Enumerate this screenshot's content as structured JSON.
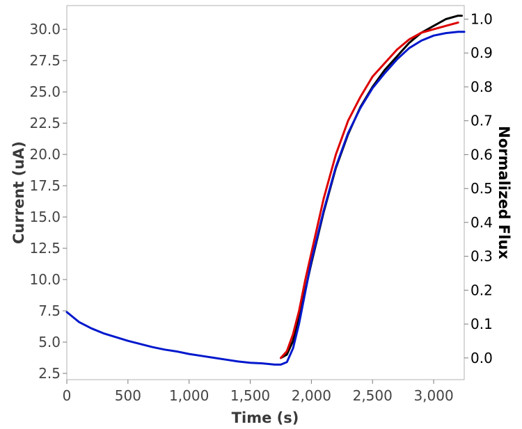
{
  "chart_data": {
    "type": "line",
    "title": "",
    "xlabel": "Time (s)",
    "ylabel": "Current (uA)",
    "y2label": "Normalized Flux",
    "xlim": [
      0,
      3250
    ],
    "ylim": [
      2.0,
      31.9
    ],
    "y2lim": [
      -0.064,
      1.04
    ],
    "x_ticks": [
      0,
      500,
      1000,
      1500,
      2000,
      2500,
      3000
    ],
    "x_tick_labels": [
      "0",
      "500",
      "1,000",
      "1,500",
      "2,000",
      "2,500",
      "3,000"
    ],
    "y_ticks": [
      2.5,
      5.0,
      7.5,
      10.0,
      12.5,
      15.0,
      17.5,
      20.0,
      22.5,
      25.0,
      27.5,
      30.0
    ],
    "y_tick_labels": [
      "2.5",
      "5.0",
      "7.5",
      "10.0",
      "12.5",
      "15.0",
      "17.5",
      "20.0",
      "22.5",
      "25.0",
      "27.5",
      "30.0"
    ],
    "y2_ticks": [
      0.0,
      0.1,
      0.2,
      0.3,
      0.4,
      0.5,
      0.6,
      0.7,
      0.8,
      0.9,
      1.0
    ],
    "y2_tick_labels": [
      "0.0",
      "0.1",
      "0.2",
      "0.3",
      "0.4",
      "0.5",
      "0.6",
      "0.7",
      "0.8",
      "0.9",
      "1.0"
    ],
    "grid": false,
    "legend": "none",
    "series": [
      {
        "color": "#000000",
        "axis": "right",
        "x": [
          1750,
          1800,
          1850,
          1900,
          1950,
          2000,
          2100,
          2200,
          2300,
          2400,
          2500,
          2600,
          2700,
          2800,
          2900,
          3000,
          3100,
          3200,
          3230
        ],
        "y": [
          0.0,
          0.01,
          0.05,
          0.12,
          0.2,
          0.28,
          0.43,
          0.56,
          0.66,
          0.74,
          0.8,
          0.85,
          0.89,
          0.93,
          0.96,
          0.98,
          1.0,
          1.01,
          1.01
        ]
      },
      {
        "color": "#dd0000",
        "axis": "right",
        "x": [
          1750,
          1800,
          1850,
          1900,
          1950,
          2000,
          2100,
          2200,
          2300,
          2400,
          2500,
          2600,
          2700,
          2800,
          2900,
          3000,
          3100,
          3200
        ],
        "y": [
          0.0,
          0.02,
          0.07,
          0.14,
          0.23,
          0.31,
          0.47,
          0.6,
          0.7,
          0.77,
          0.83,
          0.87,
          0.91,
          0.94,
          0.96,
          0.97,
          0.98,
          0.99
        ]
      },
      {
        "color": "#0018cc",
        "axis": "left",
        "x": [
          0,
          50,
          100,
          200,
          300,
          400,
          500,
          600,
          700,
          800,
          900,
          1000,
          1100,
          1200,
          1300,
          1400,
          1500,
          1600,
          1700,
          1750,
          1800,
          1850,
          1900,
          1950,
          2000,
          2100,
          2200,
          2300,
          2400,
          2500,
          2600,
          2700,
          2800,
          2900,
          3000,
          3100,
          3200,
          3250
        ],
        "y": [
          7.4,
          7.0,
          6.6,
          6.1,
          5.7,
          5.4,
          5.1,
          4.85,
          4.6,
          4.4,
          4.25,
          4.05,
          3.9,
          3.75,
          3.6,
          3.45,
          3.35,
          3.3,
          3.2,
          3.2,
          3.4,
          4.5,
          6.5,
          9.0,
          11.5,
          15.5,
          19.0,
          21.7,
          23.7,
          25.3,
          26.5,
          27.6,
          28.5,
          29.1,
          29.5,
          29.7,
          29.8,
          29.8
        ]
      }
    ]
  }
}
